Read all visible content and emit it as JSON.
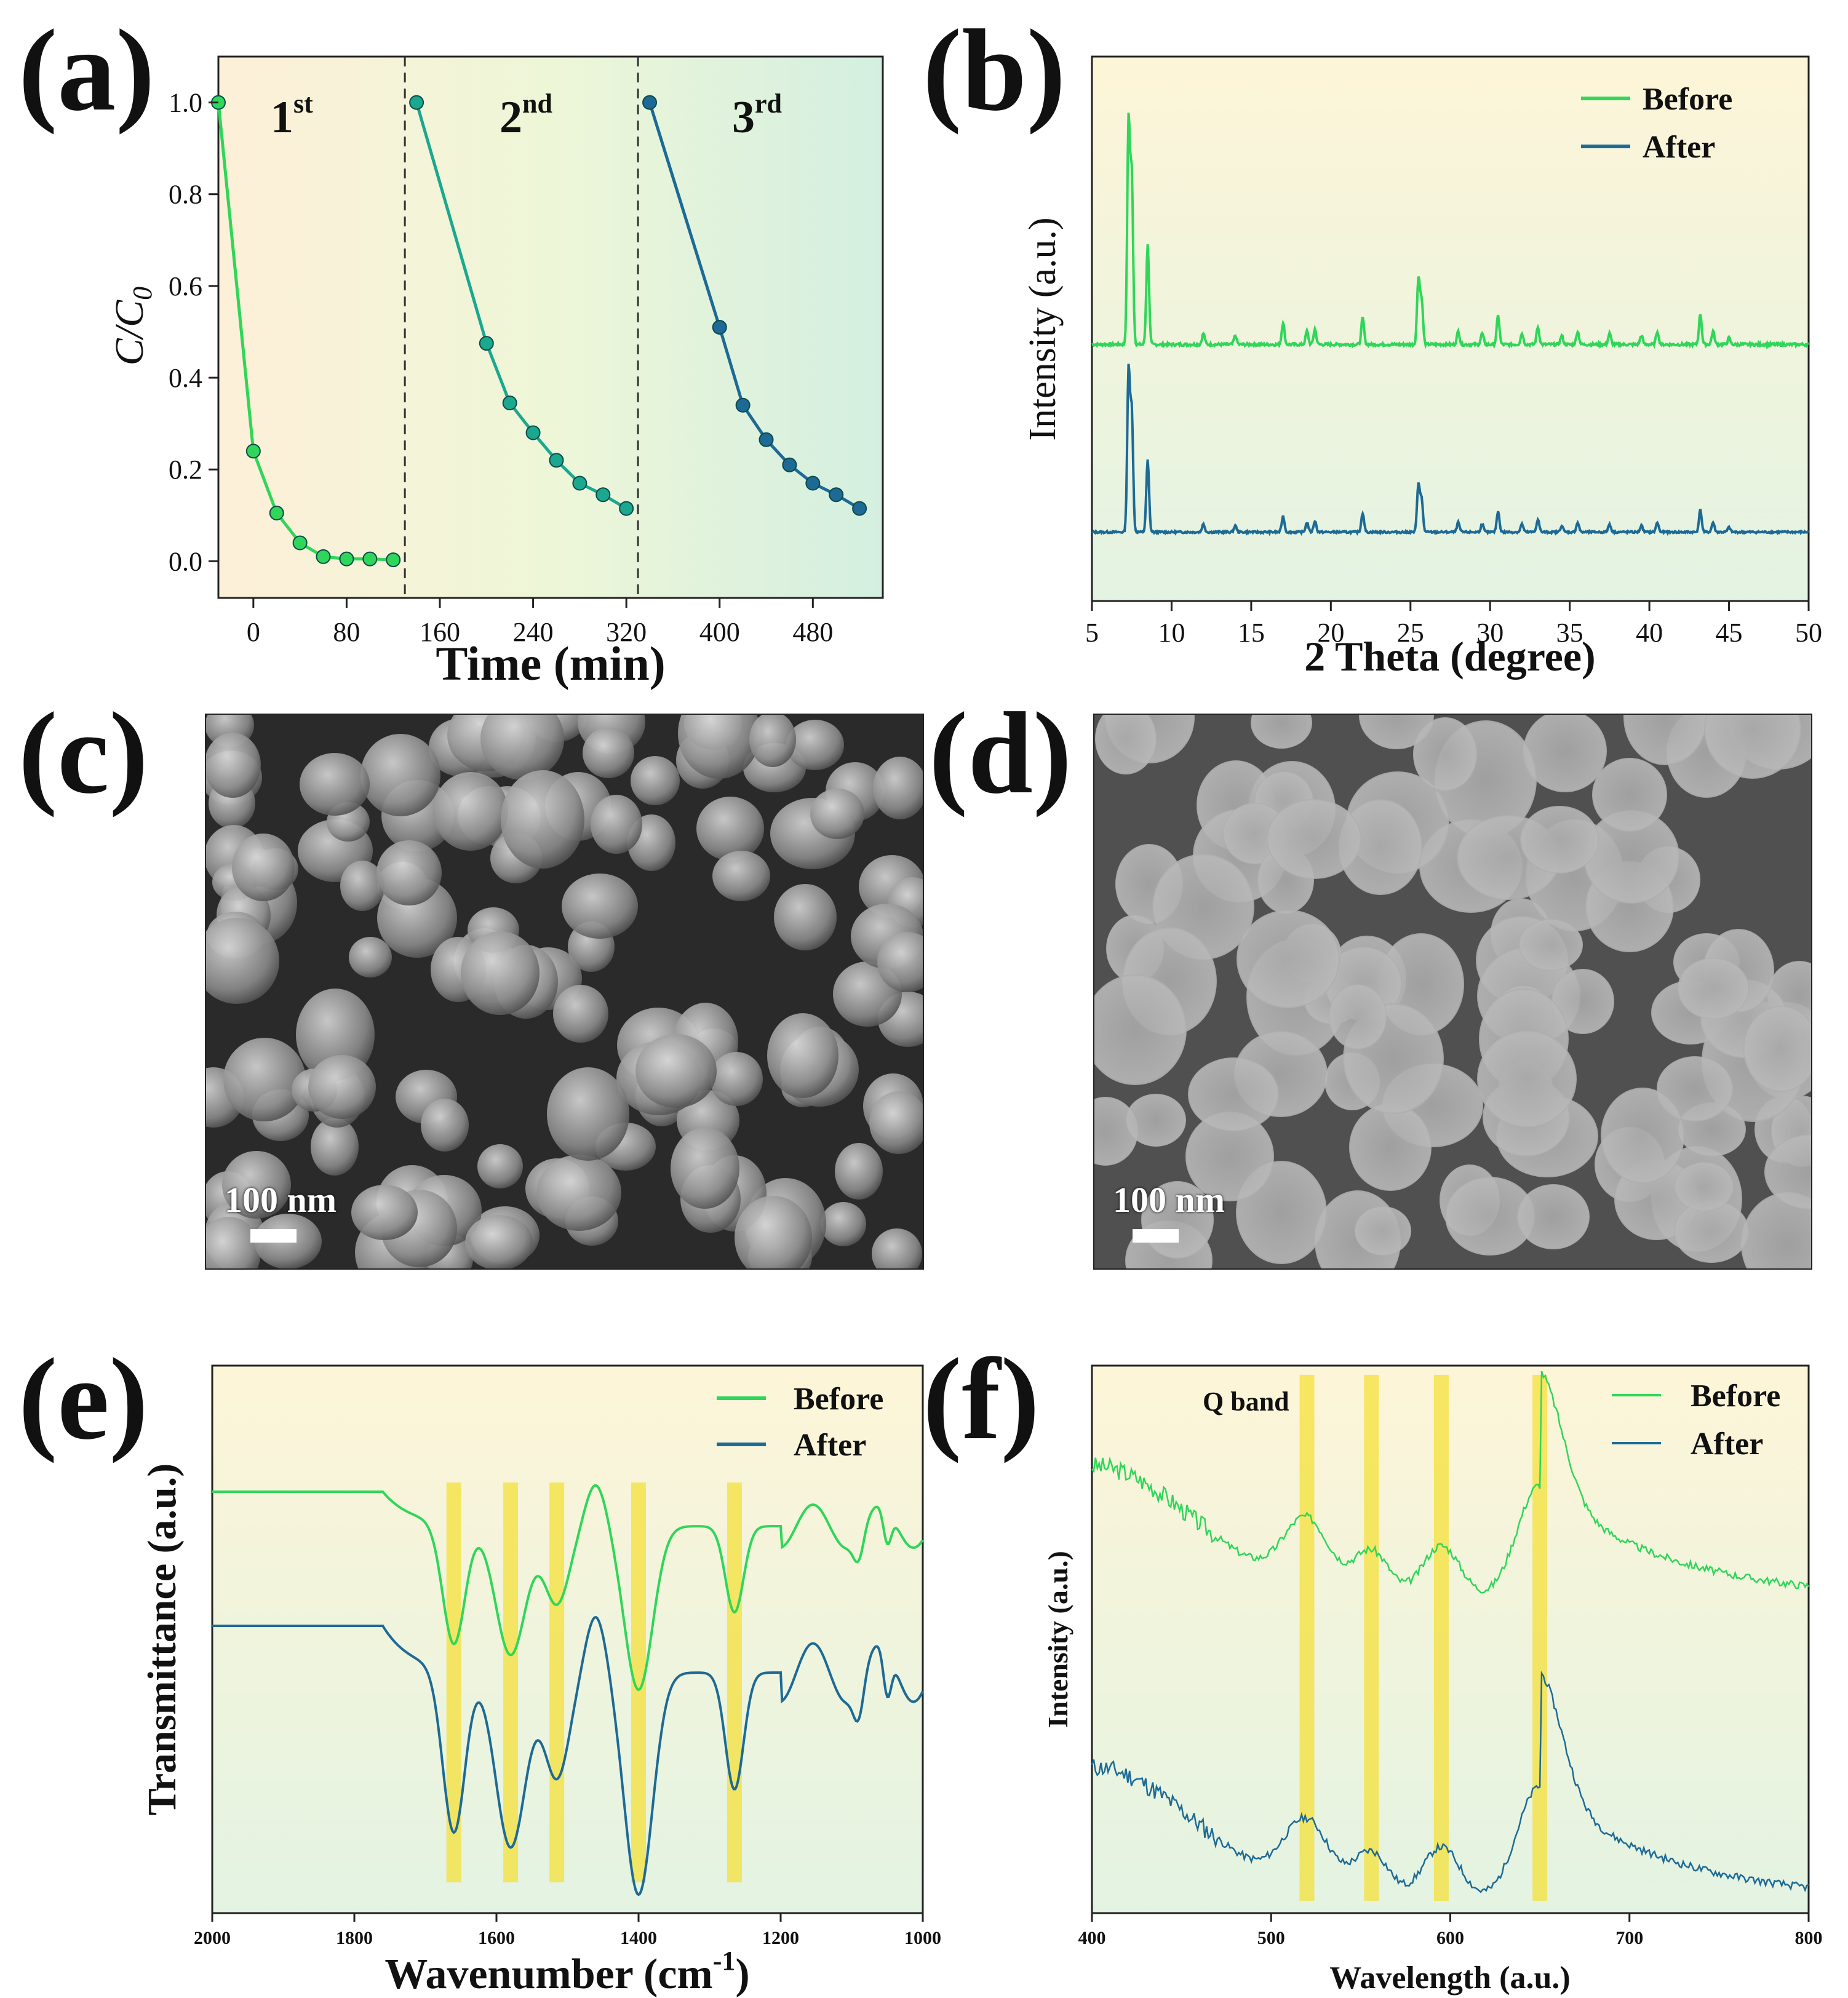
{
  "panels": {
    "a": "(a)",
    "b": "(b)",
    "c": "(c)",
    "d": "(d)",
    "e": "(e)",
    "f": "(f)"
  },
  "colors": {
    "green": "#2fd65a",
    "teal": "#1aa88f",
    "blue": "#1d6a96",
    "highlight": "#f4e03a"
  },
  "sem": {
    "c_scale": "100 nm",
    "d_scale": "100 nm"
  },
  "chart_data": [
    {
      "id": "a",
      "type": "line",
      "title": "",
      "xlabel": "Time (min)",
      "ylabel": "C/C",
      "ylabel_sub": "0",
      "xlim": [
        -30,
        540
      ],
      "ylim": [
        -0.08,
        1.1
      ],
      "xticks": [
        0,
        80,
        160,
        240,
        320,
        400,
        480
      ],
      "yticks": [
        0.0,
        0.2,
        0.4,
        0.6,
        0.8,
        1.0
      ],
      "ytick_labels": [
        "0.0",
        "0.2",
        "0.4",
        "0.6",
        "0.8",
        "1.0"
      ],
      "dividers": [
        130,
        330
      ],
      "cycle_labels": [
        {
          "base": "1",
          "sup": "st"
        },
        {
          "base": "2",
          "sup": "nd"
        },
        {
          "base": "3",
          "sup": "rd"
        }
      ],
      "series": [
        {
          "name": "1st",
          "color": "#2fd65a",
          "x": [
            -30,
            0,
            20,
            40,
            60,
            80,
            100,
            120
          ],
          "y": [
            1.0,
            0.24,
            0.105,
            0.04,
            0.01,
            0.005,
            0.005,
            0.003
          ]
        },
        {
          "name": "2nd",
          "color": "#1aa88f",
          "x": [
            140,
            200,
            220,
            240,
            260,
            280,
            300,
            320
          ],
          "y": [
            1.0,
            0.475,
            0.345,
            0.28,
            0.22,
            0.17,
            0.145,
            0.115
          ]
        },
        {
          "name": "3rd",
          "color": "#1d6a96",
          "x": [
            340,
            400,
            420,
            440,
            460,
            480,
            500,
            520
          ],
          "y": [
            1.0,
            0.51,
            0.34,
            0.265,
            0.21,
            0.17,
            0.145,
            0.115
          ]
        }
      ]
    },
    {
      "id": "b",
      "type": "line",
      "title": "",
      "xlabel": "2 Theta (degree)",
      "ylabel": "Intensity (a.u.)",
      "xlim": [
        5,
        50
      ],
      "xticks": [
        5,
        10,
        15,
        20,
        25,
        30,
        35,
        40,
        45,
        50
      ],
      "legend": [
        {
          "name": "Before",
          "color": "#2fd65a"
        },
        {
          "name": "After",
          "color": "#1d6a96"
        }
      ],
      "peaks": [
        [
          7.3,
          1.0
        ],
        [
          7.5,
          0.75
        ],
        [
          8.5,
          0.45
        ],
        [
          12.0,
          0.05
        ],
        [
          14.0,
          0.04
        ],
        [
          17.0,
          0.1
        ],
        [
          18.5,
          0.06
        ],
        [
          19.0,
          0.07
        ],
        [
          22.0,
          0.12
        ],
        [
          25.5,
          0.3
        ],
        [
          25.7,
          0.2
        ],
        [
          28.0,
          0.06
        ],
        [
          29.5,
          0.05
        ],
        [
          30.5,
          0.13
        ],
        [
          32.0,
          0.05
        ],
        [
          33.0,
          0.08
        ],
        [
          34.5,
          0.04
        ],
        [
          35.5,
          0.06
        ],
        [
          37.5,
          0.05
        ],
        [
          39.5,
          0.04
        ],
        [
          40.5,
          0.06
        ],
        [
          43.2,
          0.14
        ],
        [
          44.0,
          0.06
        ],
        [
          45.0,
          0.03
        ]
      ]
    },
    {
      "id": "e",
      "type": "line",
      "title": "",
      "xlabel": "Wavenumber (cm",
      "xlabel_sup": "-1",
      "xlabel_end": ")",
      "ylabel": "Transmittance (a.u.)",
      "xlim": [
        2000,
        1000
      ],
      "xticks": [
        2000,
        1800,
        1600,
        1400,
        1200,
        1000
      ],
      "legend": [
        {
          "name": "Before",
          "color": "#2fd65a"
        },
        {
          "name": "After",
          "color": "#1d6a96"
        }
      ],
      "highlights": [
        1660,
        1580,
        1515,
        1400,
        1265
      ],
      "dips": [
        [
          1660,
          0.28,
          22
        ],
        [
          1580,
          0.3,
          30
        ],
        [
          1515,
          0.18,
          25
        ],
        [
          1460,
          -0.1,
          20
        ],
        [
          1400,
          0.38,
          28
        ],
        [
          1265,
          0.2,
          18
        ],
        [
          1090,
          0.06,
          10
        ],
        [
          1050,
          0.08,
          8
        ]
      ]
    },
    {
      "id": "f",
      "type": "line",
      "title": "",
      "xlabel": "Wavelength (a.u.)",
      "ylabel": "Intensity (a.u.)",
      "xlim": [
        400,
        800
      ],
      "xticks": [
        400,
        500,
        600,
        700,
        800
      ],
      "legend": [
        {
          "name": "Before",
          "color": "#2fd65a"
        },
        {
          "name": "After",
          "color": "#1d6a96"
        }
      ],
      "annotation": "Q band",
      "highlights": [
        520,
        556,
        595,
        650
      ],
      "bands": [
        [
          520,
          0.18,
          18
        ],
        [
          556,
          0.12,
          14
        ],
        [
          595,
          0.14,
          15
        ],
        [
          650,
          0.3,
          18
        ]
      ]
    }
  ]
}
